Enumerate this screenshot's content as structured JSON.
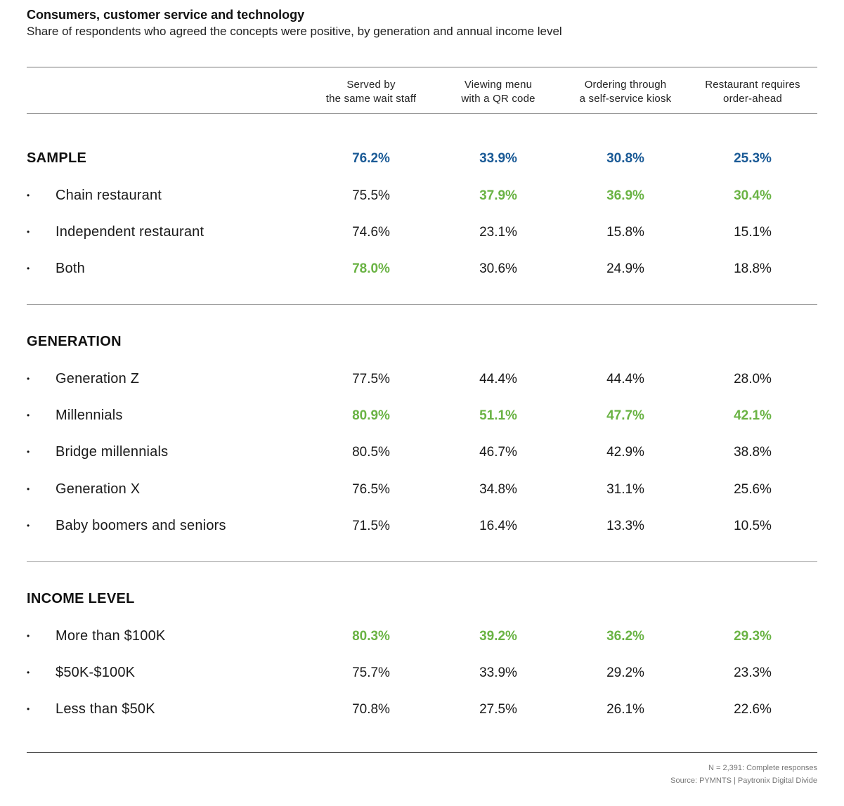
{
  "title": "Consumers, customer service and technology",
  "subtitle": "Share of respondents who agreed the concepts were positive, by generation and annual income level",
  "columns": [
    [
      "Served by",
      "the same wait staff"
    ],
    [
      "Viewing menu",
      "with a QR code"
    ],
    [
      "Ordering through",
      "a self-service kiosk"
    ],
    [
      "Restaurant requires",
      "order-ahead"
    ]
  ],
  "colors": {
    "sample": "#1a5a96",
    "highlight": "#6ab344",
    "normal": "#1a1a1a"
  },
  "footer": {
    "note": "N = 2,391: Complete responses",
    "source": "Source: PYMNTS | Paytronix   Digital Divide"
  },
  "chart_data": {
    "type": "table",
    "columns": [
      "Served by the same wait staff",
      "Viewing menu with a QR code",
      "Ordering through a self-service kiosk",
      "Restaurant requires order-ahead"
    ],
    "sections": [
      {
        "title": "SAMPLE",
        "total": {
          "values": [
            "76.2%",
            "33.9%",
            "30.8%",
            "25.3%"
          ],
          "style": [
            "sample",
            "sample",
            "sample",
            "sample"
          ]
        },
        "rows": [
          {
            "label": "Chain restaurant",
            "values": [
              "75.5%",
              "37.9%",
              "36.9%",
              "30.4%"
            ],
            "style": [
              "normal",
              "highlight",
              "highlight",
              "highlight"
            ]
          },
          {
            "label": "Independent restaurant",
            "values": [
              "74.6%",
              "23.1%",
              "15.8%",
              "15.1%"
            ],
            "style": [
              "normal",
              "normal",
              "normal",
              "normal"
            ]
          },
          {
            "label": "Both",
            "values": [
              "78.0%",
              "30.6%",
              "24.9%",
              "18.8%"
            ],
            "style": [
              "highlight",
              "normal",
              "normal",
              "normal"
            ]
          }
        ]
      },
      {
        "title": "GENERATION",
        "rows": [
          {
            "label": "Generation Z",
            "values": [
              "77.5%",
              "44.4%",
              "44.4%",
              "28.0%"
            ],
            "style": [
              "normal",
              "normal",
              "normal",
              "normal"
            ]
          },
          {
            "label": "Millennials",
            "values": [
              "80.9%",
              "51.1%",
              "47.7%",
              "42.1%"
            ],
            "style": [
              "highlight",
              "highlight",
              "highlight",
              "highlight"
            ]
          },
          {
            "label": "Bridge millennials",
            "values": [
              "80.5%",
              "46.7%",
              "42.9%",
              "38.8%"
            ],
            "style": [
              "normal",
              "normal",
              "normal",
              "normal"
            ]
          },
          {
            "label": "Generation X",
            "values": [
              "76.5%",
              "34.8%",
              "31.1%",
              "25.6%"
            ],
            "style": [
              "normal",
              "normal",
              "normal",
              "normal"
            ]
          },
          {
            "label": "Baby boomers and seniors",
            "values": [
              "71.5%",
              "16.4%",
              "13.3%",
              "10.5%"
            ],
            "style": [
              "normal",
              "normal",
              "normal",
              "normal"
            ]
          }
        ]
      },
      {
        "title": "INCOME LEVEL",
        "rows": [
          {
            "label": "More than $100K",
            "values": [
              "80.3%",
              "39.2%",
              "36.2%",
              "29.3%"
            ],
            "style": [
              "highlight",
              "highlight",
              "highlight",
              "highlight"
            ]
          },
          {
            "label": "$50K-$100K",
            "values": [
              "75.7%",
              "33.9%",
              "29.2%",
              "23.3%"
            ],
            "style": [
              "normal",
              "normal",
              "normal",
              "normal"
            ]
          },
          {
            "label": "Less than $50K",
            "values": [
              "70.8%",
              "27.5%",
              "26.1%",
              "22.6%"
            ],
            "style": [
              "normal",
              "normal",
              "normal",
              "normal"
            ]
          }
        ]
      }
    ]
  }
}
